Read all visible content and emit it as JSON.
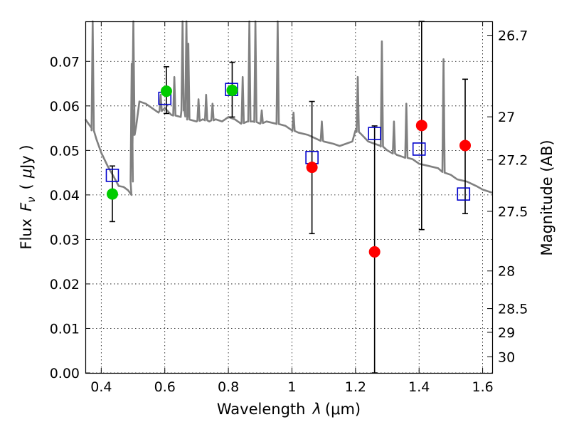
{
  "chart_data": {
    "type": "scatter",
    "title": "",
    "xlabel_text": "Wavelength",
    "xlabel_symbol": "λ",
    "xlabel_unit": "(μm)",
    "ylabel_text": "Flux",
    "ylabel_symbol": "F",
    "ylabel_symbol_sub": "ν",
    "ylabel_unit_open": "(",
    "ylabel_unit_mu": "μ",
    "ylabel_unit_rest": "Jy )",
    "y2label": "Magnitude (AB)",
    "xlim": [
      0.35,
      1.63
    ],
    "ylim": [
      0.0,
      0.079
    ],
    "grid": true,
    "x_ticks": [
      {
        "value": 0.4,
        "label": "0.4"
      },
      {
        "value": 0.6,
        "label": "0.6"
      },
      {
        "value": 0.8,
        "label": "0.8"
      },
      {
        "value": 1.0,
        "label": "1"
      },
      {
        "value": 1.2,
        "label": "1.2"
      },
      {
        "value": 1.4,
        "label": "1.4"
      },
      {
        "value": 1.6,
        "label": "1.6"
      }
    ],
    "y_ticks": [
      {
        "value": 0.0,
        "label": "0.00"
      },
      {
        "value": 0.01,
        "label": "0.01"
      },
      {
        "value": 0.02,
        "label": "0.02"
      },
      {
        "value": 0.03,
        "label": "0.03"
      },
      {
        "value": 0.04,
        "label": "0.04"
      },
      {
        "value": 0.05,
        "label": "0.05"
      },
      {
        "value": 0.06,
        "label": "0.06"
      },
      {
        "value": 0.07,
        "label": "0.07"
      }
    ],
    "y2_ticks": [
      {
        "value": 26.7,
        "label": "26.7"
      },
      {
        "value": 27.0,
        "label": "27"
      },
      {
        "value": 27.2,
        "label": "27.2"
      },
      {
        "value": 27.5,
        "label": "27.5"
      },
      {
        "value": 28.0,
        "label": "28"
      },
      {
        "value": 28.5,
        "label": "28.5"
      },
      {
        "value": 29.0,
        "label": "29"
      },
      {
        "value": 30.0,
        "label": "30"
      }
    ],
    "model_spectrum": {
      "color": "#808080",
      "x": [
        0.35,
        0.37,
        0.385,
        0.4,
        0.42,
        0.44,
        0.455,
        0.47,
        0.485,
        0.495,
        0.498,
        0.5,
        0.502,
        0.505,
        0.51,
        0.52,
        0.54,
        0.56,
        0.58,
        0.6,
        0.62,
        0.65,
        0.66,
        0.67,
        0.7,
        0.72,
        0.74,
        0.76,
        0.78,
        0.8,
        0.82,
        0.84,
        0.86,
        0.88,
        0.9,
        0.92,
        0.95,
        0.98,
        1.0,
        1.02,
        1.05,
        1.08,
        1.1,
        1.13,
        1.15,
        1.17,
        1.19,
        1.2,
        1.22,
        1.24,
        1.26,
        1.28,
        1.3,
        1.33,
        1.35,
        1.38,
        1.4,
        1.43,
        1.46,
        1.48,
        1.5,
        1.52,
        1.55,
        1.58,
        1.6,
        1.63
      ],
      "y": [
        0.057,
        0.055,
        0.0525,
        0.0495,
        0.0465,
        0.044,
        0.042,
        0.0418,
        0.041,
        0.04,
        0.049,
        0.059,
        0.0535,
        0.0535,
        0.0555,
        0.061,
        0.0605,
        0.0595,
        0.0585,
        0.0595,
        0.058,
        0.0575,
        0.06,
        0.057,
        0.0565,
        0.057,
        0.0565,
        0.057,
        0.0565,
        0.0575,
        0.057,
        0.056,
        0.0565,
        0.0565,
        0.056,
        0.0565,
        0.056,
        0.0555,
        0.0545,
        0.054,
        0.0535,
        0.0525,
        0.052,
        0.0515,
        0.051,
        0.0515,
        0.052,
        0.0545,
        0.0535,
        0.052,
        0.0515,
        0.051,
        0.05,
        0.049,
        0.0485,
        0.048,
        0.047,
        0.0465,
        0.046,
        0.045,
        0.0445,
        0.0435,
        0.043,
        0.042,
        0.0412,
        0.0405
      ],
      "emission_lines": [
        {
          "x": 0.373,
          "peak": 0.079
        },
        {
          "x": 0.496,
          "peak": 0.0695
        },
        {
          "x": 0.501,
          "peak": 0.079
        },
        {
          "x": 0.587,
          "peak": 0.0625
        },
        {
          "x": 0.63,
          "peak": 0.0665
        },
        {
          "x": 0.656,
          "peak": 0.079
        },
        {
          "x": 0.668,
          "peak": 0.079
        },
        {
          "x": 0.674,
          "peak": 0.074
        },
        {
          "x": 0.706,
          "peak": 0.0615
        },
        {
          "x": 0.73,
          "peak": 0.0625
        },
        {
          "x": 0.75,
          "peak": 0.0605
        },
        {
          "x": 0.845,
          "peak": 0.0665
        },
        {
          "x": 0.866,
          "peak": 0.079
        },
        {
          "x": 0.885,
          "peak": 0.079
        },
        {
          "x": 0.905,
          "peak": 0.059
        },
        {
          "x": 0.955,
          "peak": 0.079
        },
        {
          "x": 1.005,
          "peak": 0.0585
        },
        {
          "x": 1.094,
          "peak": 0.0565
        },
        {
          "x": 1.207,
          "peak": 0.0665
        },
        {
          "x": 1.283,
          "peak": 0.0745
        },
        {
          "x": 1.321,
          "peak": 0.0565
        },
        {
          "x": 1.36,
          "peak": 0.0605
        },
        {
          "x": 1.477,
          "peak": 0.0705
        }
      ]
    },
    "series": [
      {
        "kind": "model-photometry",
        "marker": "square",
        "color": "#0000cc",
        "x": [
          0.435,
          0.6,
          0.81,
          1.063,
          1.26,
          1.4,
          1.54
        ],
        "y": [
          0.0444,
          0.0617,
          0.0637,
          0.0484,
          0.0538,
          0.0503,
          0.0402
        ]
      },
      {
        "kind": "observed-detected",
        "marker": "circle",
        "color": "#00cc00",
        "x": [
          0.435,
          0.605,
          0.812
        ],
        "y": [
          0.0402,
          0.0633,
          0.0635
        ],
        "yerr_low": [
          0.034,
          0.0583,
          0.0575
        ],
        "yerr_high": [
          0.0465,
          0.0688,
          0.0698
        ]
      },
      {
        "kind": "observed-marginal",
        "marker": "circle",
        "color": "#ff0000",
        "x": [
          1.063,
          1.26,
          1.408,
          1.545
        ],
        "y": [
          0.0462,
          0.0272,
          0.0556,
          0.0511
        ],
        "yerr_low": [
          0.0313,
          0.0,
          0.0322,
          0.0358
        ],
        "yerr_high": [
          0.061,
          0.0555,
          0.079,
          0.066
        ]
      }
    ]
  }
}
